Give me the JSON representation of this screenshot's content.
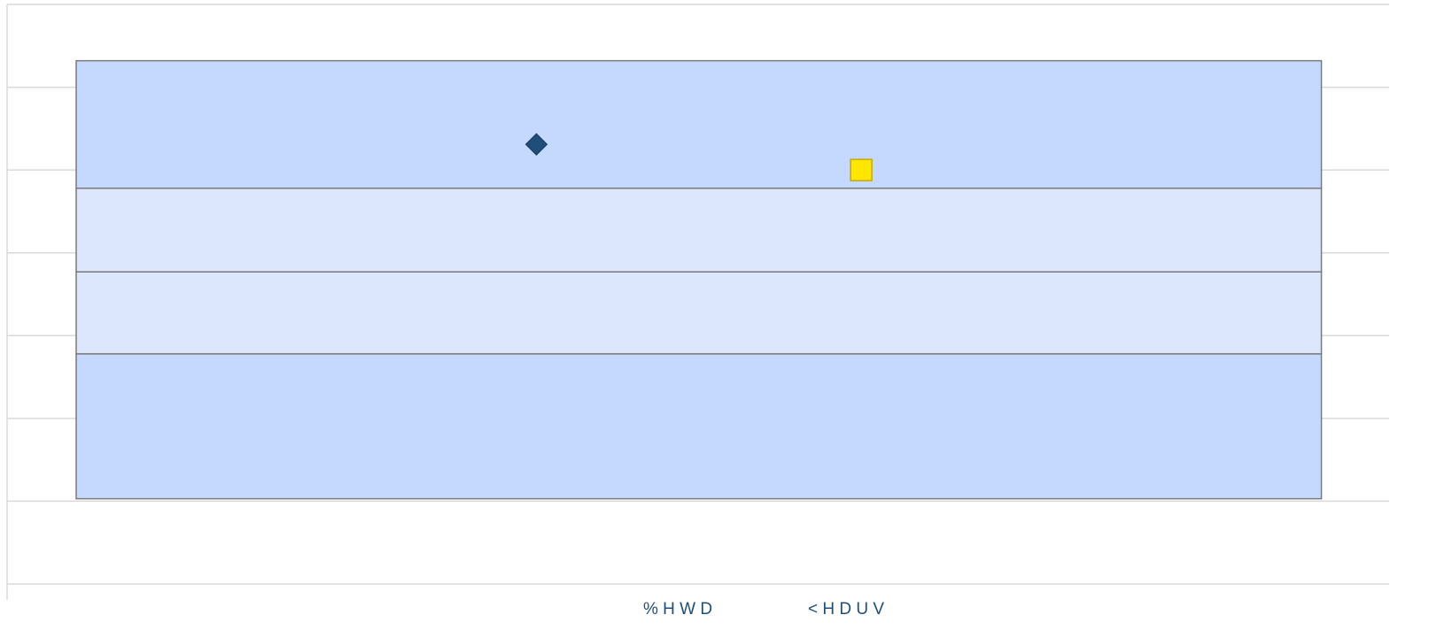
{
  "chart_data": {
    "type": "scatter",
    "xlim": [
      0,
      10
    ],
    "ylim": [
      0,
      7
    ],
    "yticks": [
      0,
      1,
      2,
      3,
      4,
      5,
      6,
      7
    ],
    "grid": true,
    "bands": [
      {
        "x": [
          0.5,
          9.51
        ],
        "y": [
          1.03,
          2.78
        ],
        "color": "#c5d8fe"
      },
      {
        "x": [
          0.5,
          9.51
        ],
        "y": [
          2.78,
          3.77
        ],
        "color": "#dce7fe"
      },
      {
        "x": [
          0.5,
          9.51
        ],
        "y": [
          3.77,
          4.78
        ],
        "color": "#dce7fe"
      },
      {
        "x": [
          0.5,
          9.51
        ],
        "y": [
          4.78,
          6.32
        ],
        "color": "#c5d8fe"
      }
    ],
    "series": [
      {
        "name": "% H W D",
        "color": "#1f4e79",
        "marker": "diamond",
        "x": [
          3.83
        ],
        "values": [
          5.31
        ]
      },
      {
        "name": "< H D U V",
        "color": "#ffe600",
        "marker": "square",
        "x": [
          6.18
        ],
        "values": [
          5.0
        ]
      }
    ]
  }
}
